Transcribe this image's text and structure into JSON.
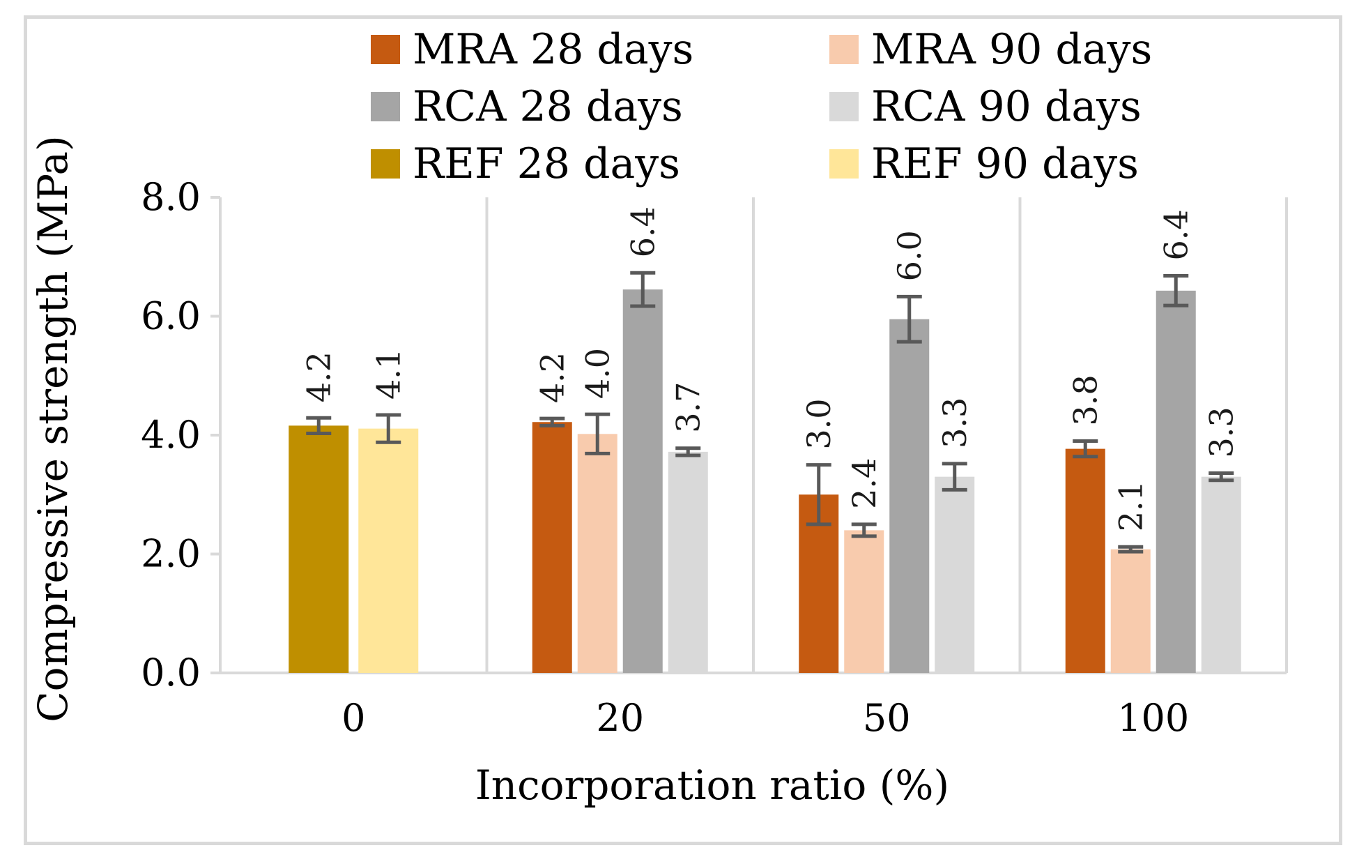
{
  "chart_data": {
    "type": "bar",
    "title": "",
    "xlabel": "Incorporation ratio (%)",
    "ylabel": "Compressive strength (MPa)",
    "ylim": [
      0,
      8
    ],
    "yticks": [
      "0.0",
      "2.0",
      "4.0",
      "6.0",
      "8.0"
    ],
    "categories": [
      "0",
      "20",
      "50",
      "100"
    ],
    "legend_position": "top",
    "series": [
      {
        "name": "MRA 28 days",
        "color": "#c55a11",
        "values": [
          null,
          4.22,
          3.0,
          3.77
        ],
        "labels": [
          null,
          "4.2",
          "3.0",
          "3.8"
        ],
        "errors": [
          null,
          0.06,
          0.5,
          0.13
        ]
      },
      {
        "name": "MRA 90 days",
        "color": "#f8cbad",
        "values": [
          null,
          4.02,
          2.4,
          2.08
        ],
        "labels": [
          null,
          "4.0",
          "2.4",
          "2.1"
        ],
        "errors": [
          null,
          0.33,
          0.1,
          0.04
        ]
      },
      {
        "name": "RCA 28 days",
        "color": "#a5a5a5",
        "values": [
          null,
          6.45,
          5.95,
          6.43
        ],
        "labels": [
          null,
          "6.4",
          "6.0",
          "6.4"
        ],
        "errors": [
          null,
          0.28,
          0.38,
          0.25
        ]
      },
      {
        "name": "RCA 90 days",
        "color": "#d9d9d9",
        "values": [
          null,
          3.72,
          3.3,
          3.3
        ],
        "labels": [
          null,
          "3.7",
          "3.3",
          "3.3"
        ],
        "errors": [
          null,
          0.06,
          0.22,
          0.06
        ]
      },
      {
        "name": "REF 28 days",
        "color": "#bf8f00",
        "values": [
          4.16,
          null,
          null,
          null
        ],
        "labels": [
          "4.2",
          null,
          null,
          null
        ],
        "errors": [
          0.13,
          null,
          null,
          null
        ]
      },
      {
        "name": "REF 90 days",
        "color": "#ffe699",
        "values": [
          4.11,
          null,
          null,
          null
        ],
        "labels": [
          "4.1",
          null,
          null,
          null
        ],
        "errors": [
          0.23,
          null,
          null,
          null
        ]
      }
    ],
    "error_bar_color": "#595959",
    "gridline_color": "#d9d9d9"
  }
}
